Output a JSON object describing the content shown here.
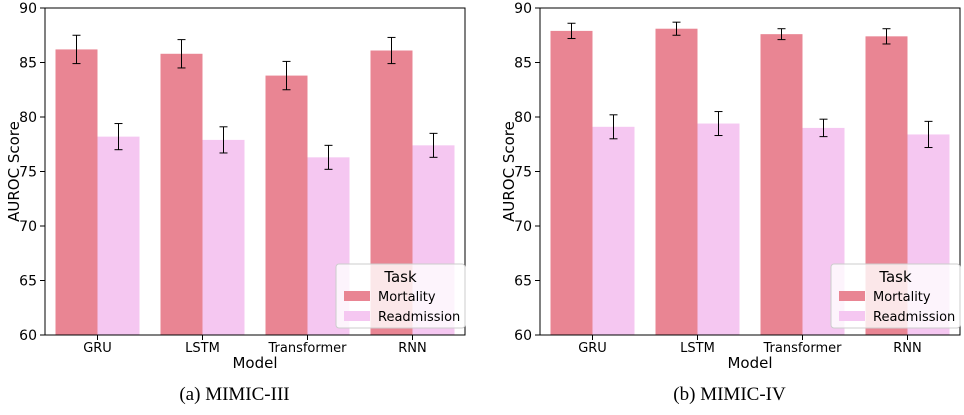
{
  "colors": {
    "mortality": "#e98593",
    "readmission": "#f5c7f1"
  },
  "chart_data": [
    {
      "type": "bar",
      "caption": "(a) MIMIC-III",
      "xlabel": "Model",
      "ylabel": "AUROC Score",
      "ylim": [
        60,
        90
      ],
      "yticks": [
        60,
        65,
        70,
        75,
        80,
        85,
        90
      ],
      "categories": [
        "GRU",
        "LSTM",
        "Transformer",
        "RNN"
      ],
      "series": [
        {
          "name": "Mortality",
          "values": [
            86.2,
            85.8,
            83.8,
            86.1
          ],
          "errors": [
            1.3,
            1.3,
            1.3,
            1.2
          ]
        },
        {
          "name": "Readmission",
          "values": [
            78.2,
            77.9,
            76.3,
            77.4
          ],
          "errors": [
            1.2,
            1.2,
            1.1,
            1.1
          ]
        }
      ],
      "legend": {
        "title": "Task",
        "position": "bottom-right"
      },
      "grid": false
    },
    {
      "type": "bar",
      "caption": "(b) MIMIC-IV",
      "xlabel": "Model",
      "ylabel": "AUROC Score",
      "ylim": [
        60,
        90
      ],
      "yticks": [
        60,
        65,
        70,
        75,
        80,
        85,
        90
      ],
      "categories": [
        "GRU",
        "LSTM",
        "Transformer",
        "RNN"
      ],
      "series": [
        {
          "name": "Mortality",
          "values": [
            87.9,
            88.1,
            87.6,
            87.4
          ],
          "errors": [
            0.7,
            0.6,
            0.5,
            0.7
          ]
        },
        {
          "name": "Readmission",
          "values": [
            79.1,
            79.4,
            79.0,
            78.4
          ],
          "errors": [
            1.1,
            1.1,
            0.8,
            1.2
          ]
        }
      ],
      "legend": {
        "title": "Task",
        "position": "bottom-right"
      },
      "grid": false
    }
  ]
}
